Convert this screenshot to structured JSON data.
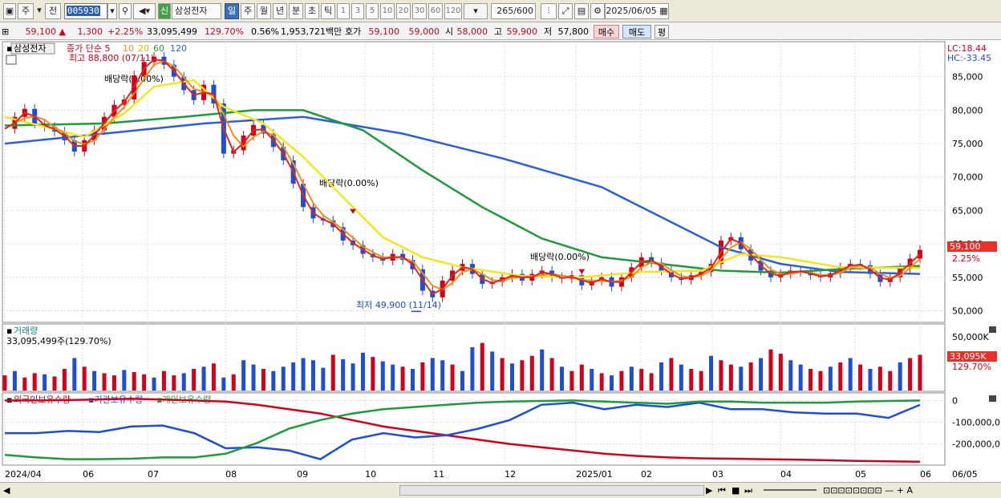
{
  "toolbar": {
    "market": "주",
    "prev_label": "전",
    "code": "005930",
    "new_badge": "신",
    "stock_name": "삼성전자",
    "periods": [
      "일",
      "주",
      "월",
      "년",
      "분",
      "초",
      "틱"
    ],
    "active_period": "일",
    "intervals": [
      "1",
      "3",
      "5",
      "10",
      "20",
      "30",
      "60",
      "120"
    ],
    "count": "265",
    "count_max": "/600",
    "date": "2025/06/05"
  },
  "quote": {
    "price": "59,100",
    "change": "1,300",
    "change_pct": "+2.25%",
    "volume": "33,095,499",
    "volume_ratio": "129.70%",
    "turnover": "0.56%",
    "amount": "1,953,721백만",
    "ask_label": "호가",
    "ask": "59,100",
    "bid": "59,000",
    "open_label": "시",
    "open": "58,000",
    "high_label": "고",
    "high": "59,900",
    "low_label": "저",
    "low": "57,800",
    "buy_label": "매수",
    "sell_label": "매도",
    "avg_label": "평"
  },
  "colors": {
    "up": "#d0021b",
    "down": "#1f4fd0",
    "ma5": "#e0261b",
    "ma10": "#f0901a",
    "ma20": "#f5e51a",
    "ma60": "#1f9a3a",
    "ma120": "#2f5fd8"
  },
  "chart_data": [
    {
      "type": "line",
      "title": "삼성전자",
      "legend": [
        "종가 단순 5",
        "10",
        "20",
        "60",
        "120"
      ],
      "annotations": {
        "high": "최고 88,800 (07/11)",
        "low": "최저 49,900 (11/14)",
        "dividends": [
          "배당락(0.00%)",
          "배당락(0.00%)",
          "배당락(0.00%)"
        ],
        "lc": "LC:18.44",
        "hc": "HC:-33.45",
        "last_price": "59,100",
        "last_pct": "2.25%"
      },
      "y_ticks": [
        "85,000",
        "80,000",
        "75,000",
        "70,000",
        "65,000",
        "60,000",
        "55,000",
        "50,000"
      ],
      "ylim": [
        48500,
        90000
      ],
      "close_points": [
        [
          0,
          77200
        ],
        [
          1,
          79000
        ],
        [
          2,
          80200
        ],
        [
          3,
          78000
        ],
        [
          4,
          77500
        ],
        [
          5,
          76800
        ],
        [
          6,
          75500
        ],
        [
          7,
          73800
        ],
        [
          8,
          75500
        ],
        [
          9,
          77000
        ],
        [
          10,
          79000
        ],
        [
          11,
          80800
        ],
        [
          12,
          81600
        ],
        [
          13,
          85200
        ],
        [
          14,
          87200
        ],
        [
          15,
          88000
        ],
        [
          16,
          86800
        ],
        [
          17,
          85000
        ],
        [
          18,
          83000
        ],
        [
          19,
          81500
        ],
        [
          20,
          83800
        ],
        [
          21,
          81000
        ],
        [
          22,
          73500
        ],
        [
          23,
          74000
        ],
        [
          24,
          76200
        ],
        [
          25,
          77800
        ],
        [
          26,
          76500
        ],
        [
          27,
          74500
        ],
        [
          28,
          72500
        ],
        [
          29,
          69000
        ],
        [
          30,
          65500
        ],
        [
          31,
          63800
        ],
        [
          32,
          63500
        ],
        [
          33,
          62500
        ],
        [
          34,
          60500
        ],
        [
          35,
          59800
        ],
        [
          36,
          58500
        ],
        [
          37,
          58000
        ],
        [
          38,
          57500
        ],
        [
          39,
          58500
        ],
        [
          40,
          57600
        ],
        [
          41,
          56200
        ],
        [
          42,
          53000
        ],
        [
          43,
          52000
        ],
        [
          44,
          54500
        ],
        [
          45,
          56000
        ],
        [
          46,
          57000
        ],
        [
          47,
          55500
        ],
        [
          48,
          54000
        ],
        [
          49,
          54300
        ],
        [
          50,
          55000
        ],
        [
          51,
          55500
        ],
        [
          52,
          54500
        ],
        [
          53,
          55500
        ],
        [
          54,
          56000
        ],
        [
          55,
          55000
        ],
        [
          56,
          54800
        ],
        [
          57,
          55300
        ],
        [
          58,
          53800
        ],
        [
          59,
          54500
        ],
        [
          60,
          55000
        ],
        [
          61,
          53600
        ],
        [
          62,
          55000
        ],
        [
          63,
          56500
        ],
        [
          64,
          58000
        ],
        [
          65,
          57200
        ],
        [
          66,
          56000
        ],
        [
          67,
          55000
        ],
        [
          68,
          54600
        ],
        [
          69,
          55300
        ],
        [
          70,
          55800
        ],
        [
          71,
          57000
        ],
        [
          72,
          60500
        ],
        [
          73,
          61000
        ],
        [
          74,
          59200
        ],
        [
          75,
          57500
        ],
        [
          76,
          56000
        ],
        [
          77,
          55000
        ],
        [
          78,
          55500
        ],
        [
          79,
          56000
        ],
        [
          80,
          55800
        ],
        [
          81,
          55300
        ],
        [
          82,
          55000
        ],
        [
          83,
          55600
        ],
        [
          84,
          56500
        ],
        [
          85,
          57000
        ],
        [
          86,
          56800
        ],
        [
          87,
          55500
        ],
        [
          88,
          54300
        ],
        [
          89,
          55000
        ],
        [
          90,
          56400
        ],
        [
          91,
          57800
        ],
        [
          92,
          59100
        ]
      ],
      "ma20_points": [
        [
          0,
          79000
        ],
        [
          8,
          76000
        ],
        [
          12,
          79500
        ],
        [
          15,
          83500
        ],
        [
          19,
          84500
        ],
        [
          22,
          80500
        ],
        [
          26,
          78000
        ],
        [
          30,
          73000
        ],
        [
          34,
          67000
        ],
        [
          38,
          61000
        ],
        [
          42,
          58000
        ],
        [
          46,
          56500
        ],
        [
          52,
          55200
        ],
        [
          58,
          55000
        ],
        [
          64,
          55800
        ],
        [
          70,
          56000
        ],
        [
          74,
          58500
        ],
        [
          78,
          58000
        ],
        [
          84,
          56500
        ],
        [
          92,
          56400
        ]
      ],
      "ma60_points": [
        [
          0,
          77700
        ],
        [
          10,
          78000
        ],
        [
          18,
          79000
        ],
        [
          25,
          80000
        ],
        [
          30,
          80000
        ],
        [
          36,
          77000
        ],
        [
          42,
          71000
        ],
        [
          48,
          65500
        ],
        [
          54,
          60800
        ],
        [
          60,
          58000
        ],
        [
          66,
          57000
        ],
        [
          72,
          56000
        ],
        [
          78,
          55700
        ],
        [
          85,
          56300
        ],
        [
          92,
          56700
        ]
      ],
      "ma120_points": [
        [
          0,
          75000
        ],
        [
          10,
          76500
        ],
        [
          20,
          78000
        ],
        [
          30,
          79000
        ],
        [
          40,
          76500
        ],
        [
          50,
          72800
        ],
        [
          60,
          68500
        ],
        [
          66,
          64000
        ],
        [
          72,
          59500
        ],
        [
          78,
          57000
        ],
        [
          84,
          55800
        ],
        [
          92,
          55500
        ]
      ]
    },
    {
      "type": "bar",
      "title": "거래량",
      "value_label": "33,095,499주(129.70%)",
      "y_ticks": [
        "50,000K"
      ],
      "last_label": "33,095K",
      "last_pct": "129.70%",
      "ylim": [
        0,
        60000
      ],
      "values": [
        14,
        18,
        12,
        16,
        15,
        13,
        20,
        30,
        22,
        18,
        16,
        14,
        19,
        17,
        15,
        12,
        18,
        14,
        16,
        20,
        22,
        25,
        12,
        15,
        28,
        24,
        20,
        18,
        22,
        26,
        30,
        28,
        21,
        33,
        29,
        25,
        35,
        31,
        27,
        24,
        22,
        20,
        26,
        30,
        28,
        24,
        18,
        40,
        44,
        36,
        30,
        25,
        28,
        32,
        38,
        30,
        22,
        18,
        24,
        20,
        16,
        14,
        18,
        22,
        20,
        16,
        26,
        30,
        24,
        20,
        18,
        32,
        28,
        24,
        22,
        26,
        30,
        38,
        34,
        28,
        24,
        20,
        18,
        22,
        26,
        30,
        24,
        20,
        22,
        18,
        26,
        30,
        33
      ],
      "up_flags": [
        1,
        0,
        1,
        1,
        0,
        1,
        1,
        0,
        1,
        0,
        1,
        1,
        0,
        1,
        1,
        0,
        1,
        1,
        0,
        1,
        0,
        1,
        0,
        1,
        0,
        0,
        1,
        0,
        0,
        0,
        0,
        0,
        0,
        1,
        0,
        0,
        0,
        1,
        0,
        0,
        1,
        0,
        1,
        0,
        0,
        1,
        0,
        0,
        1,
        0,
        1,
        0,
        1,
        1,
        0,
        1,
        0,
        1,
        1,
        0,
        1,
        0,
        1,
        0,
        1,
        1,
        0,
        1,
        0,
        1,
        1,
        0,
        1,
        1,
        0,
        1,
        0,
        1,
        1,
        0,
        0,
        1,
        1,
        0,
        1,
        0,
        1,
        0,
        1,
        1,
        0,
        1,
        1
      ]
    },
    {
      "type": "line",
      "legend": [
        "외국인보유수량",
        "기관보유수량",
        "개인보유수량"
      ],
      "y_ticks": [
        "0",
        "-100,000,0",
        "-200,000,0"
      ],
      "ylim": [
        -290000,
        20000
      ],
      "series": [
        {
          "name": "외국인보유수량",
          "values": [
            0,
            0,
            2000,
            5000,
            8000,
            4000,
            0,
            -5000,
            -20000,
            -40000,
            -60000,
            -90000,
            -120000,
            -140000,
            -160000,
            -180000,
            -200000,
            -215000,
            -230000,
            -245000,
            -255000,
            -262000,
            -266000,
            -268000,
            -270000,
            -272000,
            -275000,
            -278000,
            -280000,
            -282000
          ]
        },
        {
          "name": "기관보유수량",
          "values": [
            -150000,
            -150000,
            -140000,
            -145000,
            -120000,
            -115000,
            -150000,
            -220000,
            -215000,
            -230000,
            -270000,
            -180000,
            -150000,
            -170000,
            -160000,
            -130000,
            -90000,
            -20000,
            -10000,
            -40000,
            -20000,
            -30000,
            -10000,
            -40000,
            -40000,
            -55000,
            -60000,
            -60000,
            -80000,
            -20000
          ]
        },
        {
          "name": "개인보유수량",
          "values": [
            -250000,
            -262000,
            -270000,
            -270000,
            -268000,
            -262000,
            -262000,
            -245000,
            -195000,
            -130000,
            -90000,
            -60000,
            -40000,
            -30000,
            -20000,
            -10000,
            -5000,
            -2000,
            0,
            -5000,
            -10000,
            -15000,
            -5000,
            -5000,
            -10000,
            -10000,
            -10000,
            -5000,
            -2000,
            0
          ]
        }
      ]
    }
  ],
  "x_axis": {
    "labels": [
      "2024/04",
      "06",
      "07",
      "08",
      "09",
      "10",
      "11",
      "12",
      "2025/01",
      "02",
      "03",
      "04",
      "05",
      "06"
    ],
    "right_label": "06/05"
  }
}
